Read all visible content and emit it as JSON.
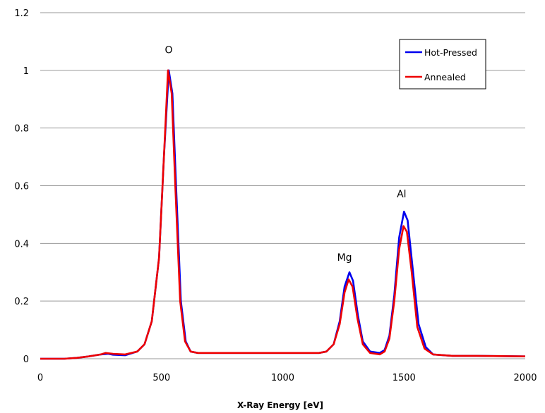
{
  "chart_data": {
    "type": "line",
    "title": "",
    "xlabel": "X-Ray Energy [eV]",
    "ylabel": "",
    "xlim": [
      0,
      2000
    ],
    "ylim": [
      0,
      1.2
    ],
    "x_ticks": [
      "0",
      "500",
      "1000",
      "1500",
      "2000"
    ],
    "y_ticks": [
      "0",
      "0.2",
      "0.4",
      "0.6",
      "0.8",
      "1",
      "1.2"
    ],
    "grid": "horizontal",
    "legend_position": "top-right",
    "annotations": [
      {
        "text": "O",
        "x": 530,
        "y": 1.06
      },
      {
        "text": "Mg",
        "x": 1255,
        "y": 0.34
      },
      {
        "text": "Al",
        "x": 1490,
        "y": 0.56
      }
    ],
    "series": [
      {
        "name": "Hot-Pressed",
        "color": "#0000ee",
        "points": [
          [
            0,
            0
          ],
          [
            100,
            0
          ],
          [
            150,
            0.003
          ],
          [
            200,
            0.008
          ],
          [
            250,
            0.015
          ],
          [
            280,
            0.017
          ],
          [
            300,
            0.014
          ],
          [
            350,
            0.012
          ],
          [
            400,
            0.025
          ],
          [
            430,
            0.05
          ],
          [
            460,
            0.13
          ],
          [
            490,
            0.35
          ],
          [
            510,
            0.7
          ],
          [
            530,
            1.0
          ],
          [
            545,
            0.92
          ],
          [
            560,
            0.6
          ],
          [
            580,
            0.2
          ],
          [
            600,
            0.06
          ],
          [
            620,
            0.025
          ],
          [
            650,
            0.02
          ],
          [
            700,
            0.02
          ],
          [
            800,
            0.02
          ],
          [
            900,
            0.02
          ],
          [
            1000,
            0.02
          ],
          [
            1100,
            0.02
          ],
          [
            1150,
            0.02
          ],
          [
            1180,
            0.025
          ],
          [
            1210,
            0.05
          ],
          [
            1235,
            0.13
          ],
          [
            1255,
            0.25
          ],
          [
            1275,
            0.3
          ],
          [
            1290,
            0.27
          ],
          [
            1310,
            0.15
          ],
          [
            1330,
            0.06
          ],
          [
            1360,
            0.025
          ],
          [
            1400,
            0.02
          ],
          [
            1420,
            0.03
          ],
          [
            1440,
            0.08
          ],
          [
            1460,
            0.22
          ],
          [
            1480,
            0.42
          ],
          [
            1500,
            0.51
          ],
          [
            1515,
            0.48
          ],
          [
            1535,
            0.32
          ],
          [
            1560,
            0.12
          ],
          [
            1590,
            0.04
          ],
          [
            1620,
            0.015
          ],
          [
            1700,
            0.01
          ],
          [
            1800,
            0.01
          ],
          [
            2000,
            0.008
          ]
        ]
      },
      {
        "name": "Annealed",
        "color": "#ee0000",
        "points": [
          [
            0,
            0
          ],
          [
            100,
            0
          ],
          [
            150,
            0.003
          ],
          [
            200,
            0.008
          ],
          [
            250,
            0.015
          ],
          [
            270,
            0.02
          ],
          [
            300,
            0.017
          ],
          [
            350,
            0.015
          ],
          [
            400,
            0.025
          ],
          [
            430,
            0.05
          ],
          [
            460,
            0.13
          ],
          [
            490,
            0.35
          ],
          [
            510,
            0.7
          ],
          [
            527,
            1.0
          ],
          [
            542,
            0.92
          ],
          [
            557,
            0.6
          ],
          [
            577,
            0.2
          ],
          [
            597,
            0.06
          ],
          [
            620,
            0.025
          ],
          [
            650,
            0.02
          ],
          [
            700,
            0.02
          ],
          [
            800,
            0.02
          ],
          [
            900,
            0.02
          ],
          [
            1000,
            0.02
          ],
          [
            1100,
            0.02
          ],
          [
            1150,
            0.02
          ],
          [
            1180,
            0.025
          ],
          [
            1210,
            0.05
          ],
          [
            1235,
            0.12
          ],
          [
            1255,
            0.23
          ],
          [
            1272,
            0.275
          ],
          [
            1288,
            0.25
          ],
          [
            1308,
            0.14
          ],
          [
            1330,
            0.05
          ],
          [
            1360,
            0.02
          ],
          [
            1400,
            0.015
          ],
          [
            1420,
            0.025
          ],
          [
            1440,
            0.07
          ],
          [
            1460,
            0.2
          ],
          [
            1480,
            0.38
          ],
          [
            1498,
            0.46
          ],
          [
            1512,
            0.44
          ],
          [
            1532,
            0.3
          ],
          [
            1555,
            0.11
          ],
          [
            1585,
            0.035
          ],
          [
            1620,
            0.015
          ],
          [
            1700,
            0.01
          ],
          [
            1800,
            0.01
          ],
          [
            2000,
            0.008
          ]
        ]
      }
    ]
  }
}
